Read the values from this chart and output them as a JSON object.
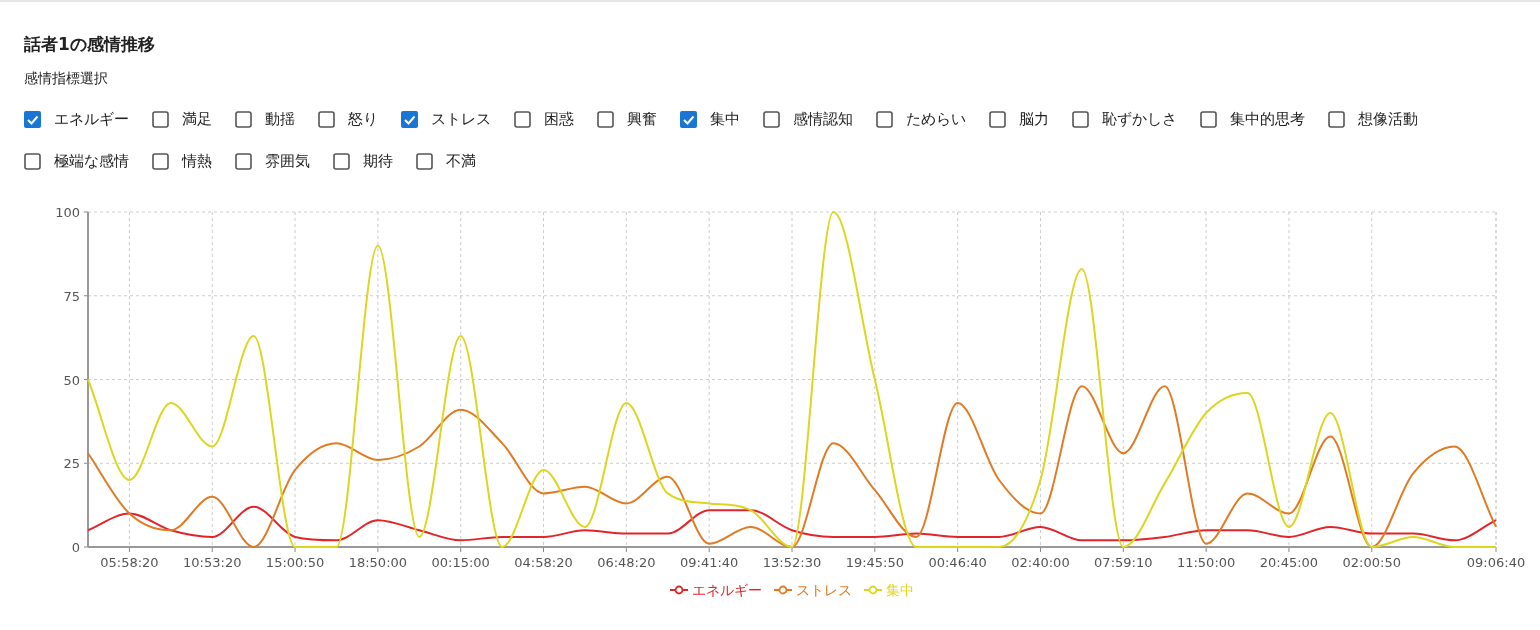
{
  "chart_data": {
    "type": "line",
    "title": "話者1の感情推移",
    "subtitle": "感情指標選択",
    "annotations": [
      "エネルギー",
      "満足",
      "動揺",
      "怒り",
      "ストレス",
      "困惑",
      "興奮",
      "集中",
      "感情認知",
      "ためらい",
      "脳力",
      "恥ずかしさ",
      "集中的思考",
      "想像活動",
      "極端な感情",
      "情熱",
      "雰囲気",
      "期待",
      "不満"
    ],
    "categories": [
      null,
      "05:58:20",
      null,
      "10:53:20",
      null,
      "15:00:50",
      null,
      "18:50:00",
      null,
      "00:15:00",
      null,
      "04:58:20",
      null,
      "06:48:20",
      null,
      "09:41:40",
      null,
      "13:52:30",
      null,
      "19:45:50",
      null,
      "00:46:40",
      null,
      "02:40:00",
      null,
      "07:59:10",
      null,
      "11:50:00",
      null,
      "20:45:00",
      null,
      "02:00:50",
      null,
      null,
      "09:06:40"
    ],
    "ylim": [
      0,
      100
    ],
    "yticks": [
      0,
      25,
      50,
      75,
      100
    ],
    "grid": true,
    "legend": "bottom",
    "marker": "none",
    "series": [
      {
        "name": "エネルギー",
        "color": "#e0262a",
        "values": [
          5,
          10,
          5,
          3,
          12,
          3,
          2,
          8,
          5,
          2,
          3,
          3,
          5,
          4,
          4,
          11,
          11,
          5,
          3,
          3,
          4,
          3,
          3,
          6,
          2,
          2,
          3,
          5,
          5,
          3,
          6,
          4,
          4,
          2,
          8
        ]
      },
      {
        "name": "ストレス",
        "color": "#e07b24",
        "values": [
          28,
          10,
          5,
          15,
          0,
          23,
          31,
          26,
          30,
          41,
          31,
          16,
          18,
          13,
          21,
          1,
          6,
          0,
          31,
          17,
          3,
          43,
          20,
          10,
          48,
          28,
          48,
          1,
          16,
          10,
          33,
          0,
          22,
          30,
          6
        ]
      },
      {
        "name": "集中",
        "color": "#dcd620",
        "values": [
          50,
          20,
          43,
          30,
          63,
          0,
          0,
          90,
          3,
          63,
          0,
          23,
          6,
          43,
          16,
          13,
          11,
          0,
          100,
          50,
          0,
          0,
          0,
          20,
          83,
          0,
          19,
          40,
          46,
          6,
          40,
          0,
          3,
          0,
          0
        ]
      }
    ]
  }
}
